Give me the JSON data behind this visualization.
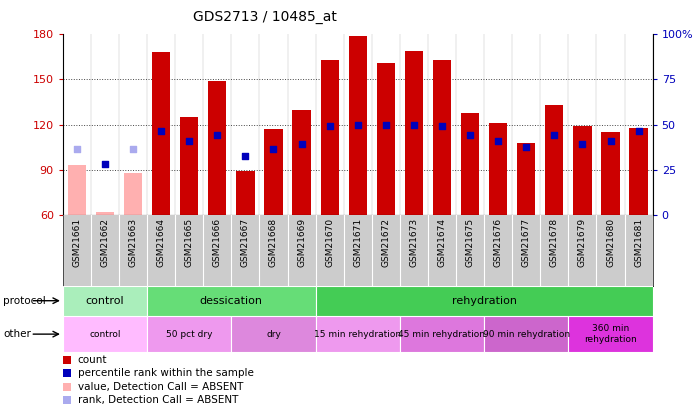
{
  "title": "GDS2713 / 10485_at",
  "samples": [
    "GSM21661",
    "GSM21662",
    "GSM21663",
    "GSM21664",
    "GSM21665",
    "GSM21666",
    "GSM21667",
    "GSM21668",
    "GSM21669",
    "GSM21670",
    "GSM21671",
    "GSM21672",
    "GSM21673",
    "GSM21674",
    "GSM21675",
    "GSM21676",
    "GSM21677",
    "GSM21678",
    "GSM21679",
    "GSM21680",
    "GSM21681"
  ],
  "bar_values": [
    93,
    62,
    88,
    168,
    125,
    149,
    89,
    117,
    130,
    163,
    179,
    161,
    169,
    163,
    128,
    121,
    108,
    133,
    119,
    115,
    118
  ],
  "bar_absent": [
    true,
    true,
    true,
    false,
    false,
    false,
    false,
    false,
    false,
    false,
    false,
    false,
    false,
    false,
    false,
    false,
    false,
    false,
    false,
    false,
    false
  ],
  "rank_values": [
    104,
    94,
    104,
    116,
    109,
    113,
    99,
    104,
    107,
    119,
    120,
    120,
    120,
    119,
    113,
    109,
    105,
    113,
    107,
    109,
    116
  ],
  "rank_absent": [
    true,
    false,
    true,
    false,
    false,
    false,
    false,
    false,
    false,
    false,
    false,
    false,
    false,
    false,
    false,
    false,
    false,
    false,
    false,
    false,
    false
  ],
  "ylim_left": [
    60,
    180
  ],
  "ylim_right": [
    0,
    100
  ],
  "yticks_left": [
    60,
    90,
    120,
    150,
    180
  ],
  "yticks_right": [
    0,
    25,
    50,
    75,
    100
  ],
  "bar_color_present": "#cc0000",
  "bar_color_absent": "#ffb0b0",
  "rank_color_present": "#0000bb",
  "rank_color_absent": "#aaaaee",
  "bar_width": 0.65,
  "protocol_groups": [
    {
      "label": "control",
      "start": 0,
      "end": 3,
      "color": "#aaeebb"
    },
    {
      "label": "dessication",
      "start": 3,
      "end": 9,
      "color": "#66dd77"
    },
    {
      "label": "rehydration",
      "start": 9,
      "end": 21,
      "color": "#44cc55"
    }
  ],
  "other_groups": [
    {
      "label": "control",
      "start": 0,
      "end": 3,
      "color": "#ffbbff"
    },
    {
      "label": "50 pct dry",
      "start": 3,
      "end": 6,
      "color": "#ee99ee"
    },
    {
      "label": "dry",
      "start": 6,
      "end": 9,
      "color": "#dd88dd"
    },
    {
      "label": "15 min rehydration",
      "start": 9,
      "end": 12,
      "color": "#ee99ee"
    },
    {
      "label": "45 min rehydration",
      "start": 12,
      "end": 15,
      "color": "#dd77dd"
    },
    {
      "label": "90 min rehydration",
      "start": 15,
      "end": 18,
      "color": "#cc66cc"
    },
    {
      "label": "360 min\nrehydration",
      "start": 18,
      "end": 21,
      "color": "#dd33dd"
    }
  ],
  "grid_color": "#444444",
  "bg_color": "#ffffff",
  "left_axis_color": "#cc0000",
  "right_axis_color": "#0000bb",
  "xtick_bg_color": "#cccccc",
  "rank_square_size": 5
}
